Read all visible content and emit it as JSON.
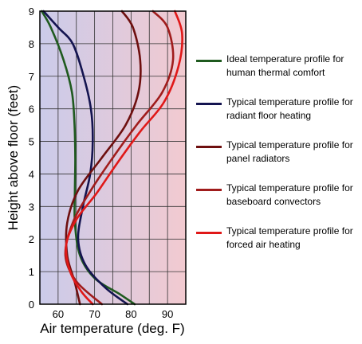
{
  "chart_data": {
    "type": "line",
    "xlabel": "Air temperature (deg. F)",
    "ylabel": "Height above floor (feet)",
    "xlim": [
      55,
      95
    ],
    "ylim": [
      0,
      9
    ],
    "xticks": [
      60,
      70,
      80,
      90
    ],
    "yticks": [
      0,
      1,
      2,
      3,
      4,
      5,
      6,
      7,
      8,
      9
    ],
    "grid": true,
    "background_gradient": [
      "#cbcbea",
      "#f2cad0"
    ],
    "legend_position": "right",
    "series": [
      {
        "name": "Ideal temperature profile for human thermal comfort",
        "color": "#1f5a1f",
        "points": [
          [
            55.5,
            9
          ],
          [
            58,
            8.5
          ],
          [
            61.5,
            7.5
          ],
          [
            63.8,
            6.5
          ],
          [
            64.5,
            5.5
          ],
          [
            64.7,
            4.5
          ],
          [
            64.6,
            3.5
          ],
          [
            64.6,
            2.5
          ],
          [
            66,
            1.5
          ],
          [
            70,
            0.8
          ],
          [
            77,
            0.3
          ],
          [
            81,
            0
          ]
        ]
      },
      {
        "name": "Typical temperature profile for radiant floor heating",
        "color": "#141450",
        "points": [
          [
            56,
            9
          ],
          [
            60,
            8.5
          ],
          [
            64,
            8
          ],
          [
            67,
            7
          ],
          [
            69,
            6
          ],
          [
            69.5,
            5
          ],
          [
            68.8,
            4
          ],
          [
            66.8,
            3
          ],
          [
            65.5,
            2
          ],
          [
            67.5,
            1.2
          ],
          [
            73,
            0.5
          ],
          [
            79,
            0
          ]
        ]
      },
      {
        "name": "Typical temperature profile for panel radiators",
        "color": "#6e0f0f",
        "points": [
          [
            77.5,
            9
          ],
          [
            80.5,
            8.5
          ],
          [
            82.5,
            7.5
          ],
          [
            82,
            6.5
          ],
          [
            78.5,
            5.5
          ],
          [
            72,
            4.5
          ],
          [
            65.5,
            3.5
          ],
          [
            62.5,
            2.5
          ],
          [
            62.5,
            1.5
          ],
          [
            64.5,
            0.7
          ],
          [
            66,
            0
          ]
        ]
      },
      {
        "name": "Typical temperature profile for baseboard convectors",
        "color": "#a01c1c",
        "points": [
          [
            86,
            9
          ],
          [
            90,
            8.5
          ],
          [
            91.5,
            7.5
          ],
          [
            88.5,
            6.5
          ],
          [
            81.5,
            5.5
          ],
          [
            75,
            4.5
          ],
          [
            69,
            3.5
          ],
          [
            64,
            2.5
          ],
          [
            62,
            1.5
          ],
          [
            65,
            0.7
          ],
          [
            72,
            0
          ]
        ]
      },
      {
        "name": "Typical temperature profile for forced air heating",
        "color": "#e01818",
        "points": [
          [
            92,
            9
          ],
          [
            94,
            8.3
          ],
          [
            93,
            7.3
          ],
          [
            89,
            6.2
          ],
          [
            82.5,
            5.3
          ],
          [
            76,
            4.3
          ],
          [
            70.5,
            3.4
          ],
          [
            65,
            2.6
          ],
          [
            62.2,
            1.8
          ],
          [
            63.3,
            1
          ],
          [
            66.3,
            0.4
          ],
          [
            69.5,
            0
          ]
        ]
      }
    ]
  }
}
